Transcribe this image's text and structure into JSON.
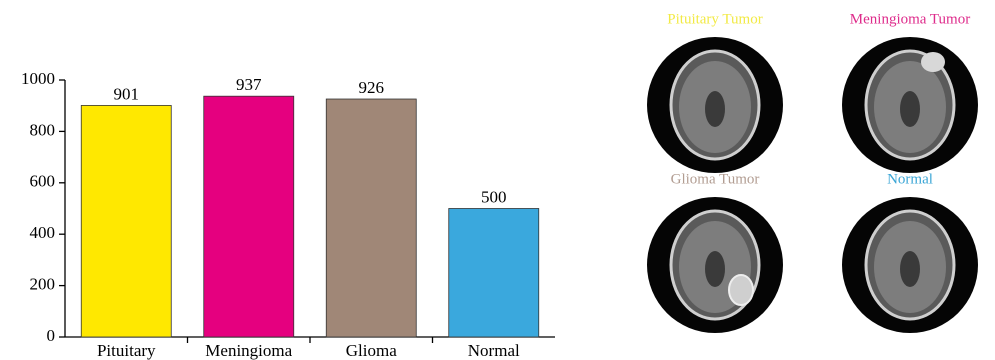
{
  "chart_data": {
    "type": "bar",
    "categories": [
      "Pituitary",
      "Meningioma",
      "Glioma",
      "Normal"
    ],
    "values": [
      901,
      937,
      926,
      500
    ],
    "colors": [
      "#ffe800",
      "#e5007f",
      "#a08777",
      "#3aa8dd"
    ],
    "ylim": [
      0,
      1000
    ],
    "yticks": [
      0,
      200,
      400,
      600,
      800,
      1000
    ],
    "grid": false
  },
  "panels": [
    {
      "label": "Pituitary Tumor",
      "color": "#f2ea45"
    },
    {
      "label": "Meningioma Tumor",
      "color": "#de2b8b"
    },
    {
      "label": "Glioma Tumor",
      "color": "#b29d92"
    },
    {
      "label": "Normal",
      "color": "#3ba6d6"
    }
  ]
}
